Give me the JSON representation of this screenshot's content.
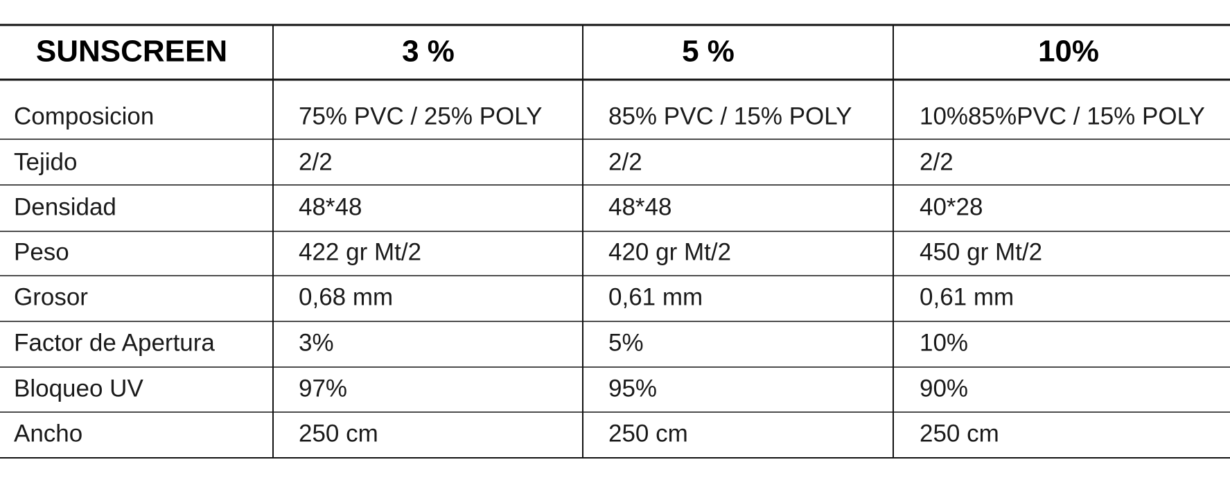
{
  "table": {
    "header": [
      "SUNSCREEN",
      "3 %",
      "5 %",
      "10%"
    ],
    "rows": [
      [
        "Composicion",
        "75% PVC / 25% POLY",
        "85% PVC / 15% POLY",
        "10%85%PVC / 15% POLY"
      ],
      [
        "Tejido",
        "2/2",
        "2/2",
        "2/2"
      ],
      [
        "Densidad",
        "48*48",
        "48*48",
        "40*28"
      ],
      [
        "Peso",
        "422 gr Mt/2",
        "420 gr Mt/2",
        "450 gr Mt/2"
      ],
      [
        "Grosor",
        "0,68 mm",
        "0,61 mm",
        "0,61 mm"
      ],
      [
        "Factor de Apertura",
        "3%",
        "5%",
        "10%"
      ],
      [
        "Bloqueo UV",
        "97%",
        "95%",
        "90%"
      ],
      [
        "Ancho",
        "250 cm",
        "250 cm",
        "250 cm"
      ]
    ]
  }
}
